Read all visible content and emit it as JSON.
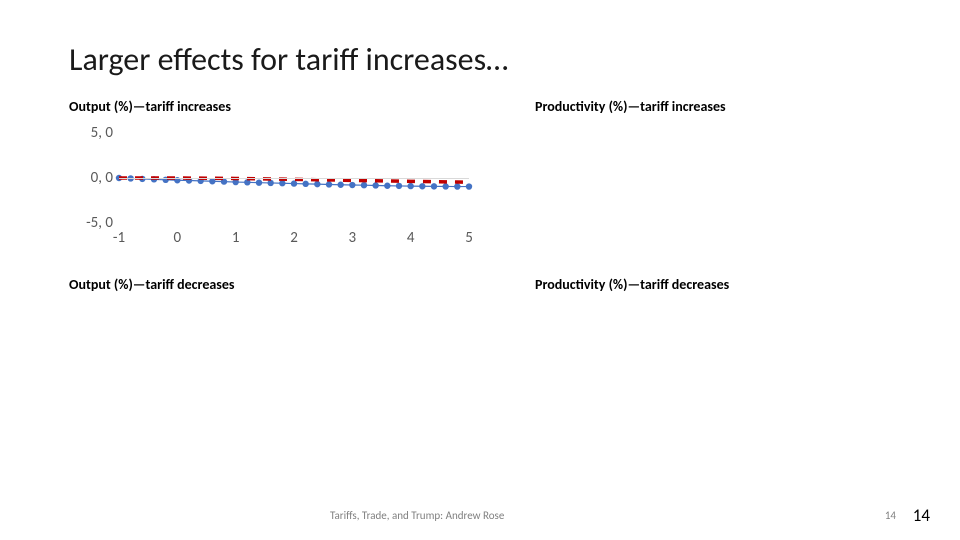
{
  "title": "Larger effects for tariff increases…",
  "subtitles": {
    "output_inc": "Output (%)—tariff increases",
    "productivity_inc": "Productivity (%)—tariff increases",
    "output_dec": "Output (%)—tariff decreases",
    "productivity_dec": "Productivity (%)—tariff decreases"
  },
  "chart": {
    "type": "line",
    "ylim": [
      -5,
      5
    ],
    "yticks": [
      {
        "v": 5,
        "label": "5, 0"
      },
      {
        "v": 0,
        "label": "0, 0"
      },
      {
        "v": -5,
        "label": "-5, 0"
      }
    ],
    "xlim": [
      -1,
      5
    ],
    "xticks": [
      {
        "v": -1,
        "label": "-1"
      },
      {
        "v": 0,
        "label": "0"
      },
      {
        "v": 1,
        "label": "1"
      },
      {
        "v": 2,
        "label": "2"
      },
      {
        "v": 3,
        "label": "3"
      },
      {
        "v": 4,
        "label": "4"
      },
      {
        "v": 5,
        "label": "5"
      }
    ],
    "xvals": [
      -1,
      -0.8,
      -0.6,
      -0.4,
      -0.2,
      0,
      0.2,
      0.4,
      0.6,
      0.8,
      1,
      1.2,
      1.4,
      1.6,
      1.8,
      2,
      2.2,
      2.4,
      2.6,
      2.8,
      3,
      3.2,
      3.4,
      3.6,
      3.8,
      4,
      4.2,
      4.4,
      4.6,
      4.8,
      5
    ],
    "series": [
      {
        "name": "blue",
        "color": "#4472c4",
        "marker": "circle",
        "marker_size": 3.2,
        "line_width": 1.2,
        "y": [
          0,
          -0.05,
          -0.1,
          -0.15,
          -0.2,
          -0.25,
          -0.28,
          -0.32,
          -0.36,
          -0.4,
          -0.45,
          -0.48,
          -0.52,
          -0.55,
          -0.58,
          -0.62,
          -0.65,
          -0.68,
          -0.72,
          -0.75,
          -0.78,
          -0.8,
          -0.83,
          -0.86,
          -0.88,
          -0.9,
          -0.92,
          -0.93,
          -0.94,
          -0.95,
          -0.95
        ]
      },
      {
        "name": "red",
        "color": "#c00000",
        "dash": "8,8",
        "line_width": 3.5,
        "y": [
          0,
          0,
          0,
          0,
          0,
          0,
          -0.01,
          -0.02,
          -0.03,
          -0.04,
          -0.05,
          -0.07,
          -0.09,
          -0.11,
          -0.13,
          -0.15,
          -0.17,
          -0.19,
          -0.21,
          -0.24,
          -0.27,
          -0.29,
          -0.31,
          -0.33,
          -0.35,
          -0.37,
          -0.39,
          -0.41,
          -0.43,
          -0.45,
          -0.47
        ]
      }
    ],
    "grid_color": "#d9d9d9",
    "background_color": "#ffffff"
  },
  "footer": {
    "credit": "Tariffs, Trade, and Trump: Andrew Rose",
    "page_small": "14",
    "page_large": "14"
  }
}
